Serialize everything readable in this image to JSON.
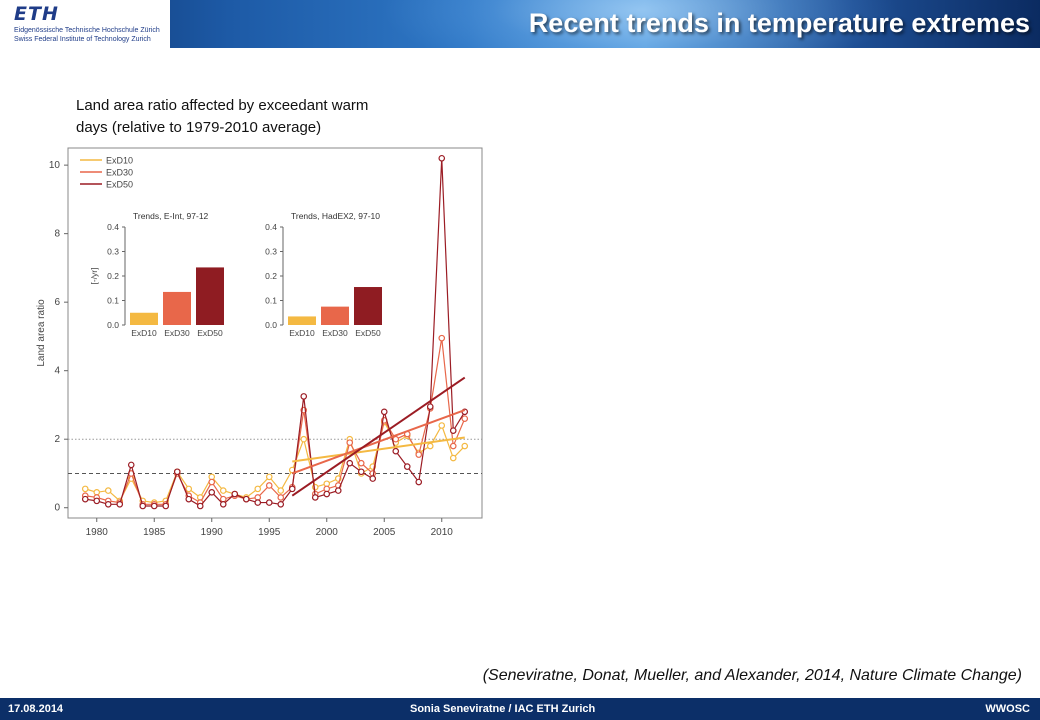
{
  "header": {
    "logo_mark": "ETH",
    "logo_line1": "Eidgenössische Technische Hochschule Zürich",
    "logo_line2": "Swiss Federal Institute of Technology Zurich",
    "title": "Recent trends in temperature extremes"
  },
  "caption": {
    "line1": "Land area ratio affected by exceedant warm",
    "line2": "days (relative to 1979-2010 average)"
  },
  "citation": "(Seneviratne, Donat, Mueller, and Alexander, 2014, Nature Climate Change)",
  "footer": {
    "date": "17.08.2014",
    "author": "Sonia Seneviratne / IAC ETH Zurich",
    "org": "WWOSC"
  },
  "chart_data": [
    {
      "type": "line",
      "xlabel": "",
      "ylabel": "Land area ratio",
      "xlim": [
        1977.5,
        2013.5
      ],
      "ylim": [
        -0.3,
        10.5
      ],
      "xticks": [
        1980,
        1985,
        1990,
        1995,
        2000,
        2005,
        2010
      ],
      "yticks": [
        0,
        2,
        4,
        6,
        8,
        10
      ],
      "reference_lines": [
        1,
        2
      ],
      "x": [
        1979,
        1980,
        1981,
        1982,
        1983,
        1984,
        1985,
        1986,
        1987,
        1988,
        1989,
        1990,
        1991,
        1992,
        1993,
        1994,
        1995,
        1996,
        1997,
        1998,
        1999,
        2000,
        2001,
        2002,
        2003,
        2004,
        2005,
        2006,
        2007,
        2008,
        2009,
        2010,
        2011,
        2012
      ],
      "series": [
        {
          "name": "ExD10",
          "color": "#f4b942",
          "values": [
            0.55,
            0.45,
            0.5,
            0.2,
            0.85,
            0.2,
            0.15,
            0.2,
            1.05,
            0.55,
            0.3,
            0.9,
            0.5,
            0.4,
            0.3,
            0.55,
            0.9,
            0.5,
            1.1,
            2.0,
            0.6,
            0.7,
            0.85,
            2.0,
            1.0,
            1.2,
            2.5,
            1.9,
            2.1,
            1.6,
            1.8,
            2.4,
            1.45,
            1.8
          ]
        },
        {
          "name": "ExD30",
          "color": "#e8674a",
          "values": [
            0.35,
            0.3,
            0.2,
            0.15,
            1.0,
            0.1,
            0.1,
            0.1,
            1.0,
            0.35,
            0.15,
            0.75,
            0.25,
            0.35,
            0.25,
            0.3,
            0.65,
            0.3,
            0.6,
            2.85,
            0.4,
            0.55,
            0.65,
            1.9,
            1.3,
            1.0,
            2.55,
            2.0,
            2.15,
            1.55,
            2.9,
            4.95,
            1.8,
            2.6
          ]
        },
        {
          "name": "ExD50",
          "color": "#9b1c24",
          "values": [
            0.25,
            0.2,
            0.1,
            0.1,
            1.25,
            0.05,
            0.05,
            0.05,
            1.05,
            0.25,
            0.05,
            0.45,
            0.1,
            0.4,
            0.25,
            0.15,
            0.15,
            0.1,
            0.55,
            3.25,
            0.3,
            0.4,
            0.5,
            1.3,
            1.05,
            0.85,
            2.8,
            1.65,
            1.2,
            0.75,
            2.95,
            10.2,
            2.25,
            2.8
          ]
        }
      ],
      "trend_lines": [
        {
          "series": "ExD10",
          "x": [
            1997,
            2012
          ],
          "y": [
            1.35,
            2.05
          ]
        },
        {
          "series": "ExD30",
          "x": [
            1997,
            2012
          ],
          "y": [
            1.0,
            2.85
          ]
        },
        {
          "series": "ExD50",
          "x": [
            1997,
            2012
          ],
          "y": [
            0.35,
            3.8
          ]
        }
      ]
    },
    {
      "type": "bar",
      "title": "Trends, E-Int, 97-12",
      "ylabel": "[-/yr]",
      "ylim": [
        0,
        0.4
      ],
      "yticks": [
        0.0,
        0.1,
        0.2,
        0.3,
        0.4
      ],
      "categories": [
        "ExD10",
        "ExD30",
        "ExD50"
      ],
      "values": [
        0.05,
        0.135,
        0.235
      ],
      "colors": [
        "#f4b942",
        "#e8674a",
        "#8f1c22"
      ]
    },
    {
      "type": "bar",
      "title": "Trends, HadEX2, 97-10",
      "ylabel": "",
      "ylim": [
        0,
        0.4
      ],
      "yticks": [
        0.0,
        0.1,
        0.2,
        0.3,
        0.4
      ],
      "categories": [
        "ExD10",
        "ExD30",
        "ExD50"
      ],
      "values": [
        0.035,
        0.075,
        0.155
      ],
      "colors": [
        "#f4b942",
        "#e8674a",
        "#8f1c22"
      ]
    }
  ]
}
